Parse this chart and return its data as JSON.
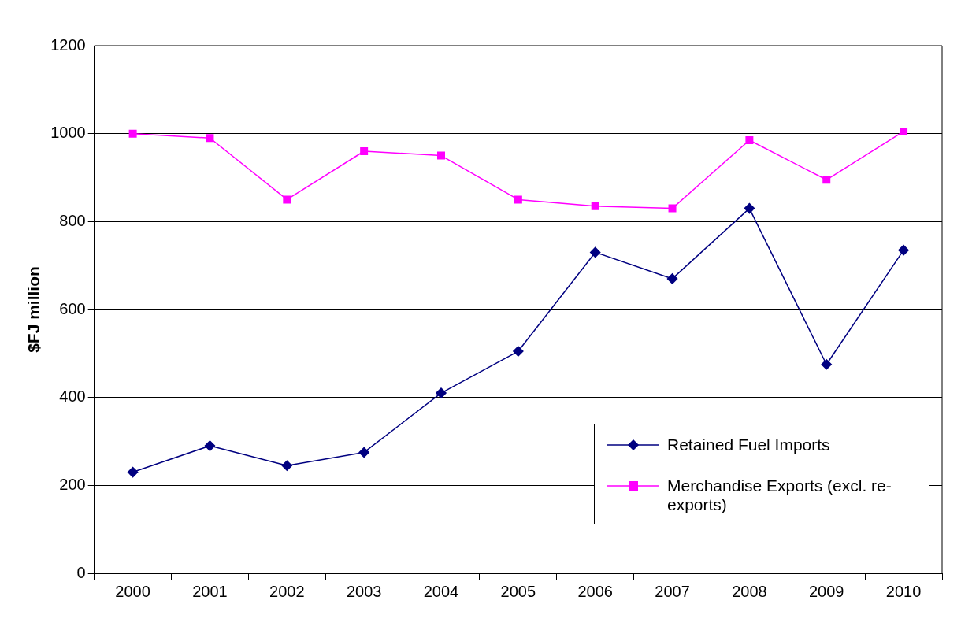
{
  "chart_data": {
    "type": "line",
    "ylabel": "$FJ million",
    "categories": [
      "2000",
      "2001",
      "2002",
      "2003",
      "2004",
      "2005",
      "2006",
      "2007",
      "2008",
      "2009",
      "2010"
    ],
    "series": [
      {
        "name": "Retained Fuel Imports",
        "color": "#000080",
        "marker": "diamond",
        "values": [
          230,
          290,
          245,
          275,
          410,
          505,
          730,
          670,
          830,
          475,
          735
        ]
      },
      {
        "name": "Merchandise Exports (excl. re-exports)",
        "color": "#ff00ff",
        "marker": "square",
        "values": [
          1000,
          990,
          850,
          960,
          950,
          850,
          835,
          830,
          985,
          895,
          1005
        ]
      }
    ],
    "ylim": [
      0,
      1200
    ],
    "yticks": [
      0,
      200,
      400,
      600,
      800,
      1000,
      1200
    ],
    "grid": "y",
    "legend": "bottom right"
  }
}
